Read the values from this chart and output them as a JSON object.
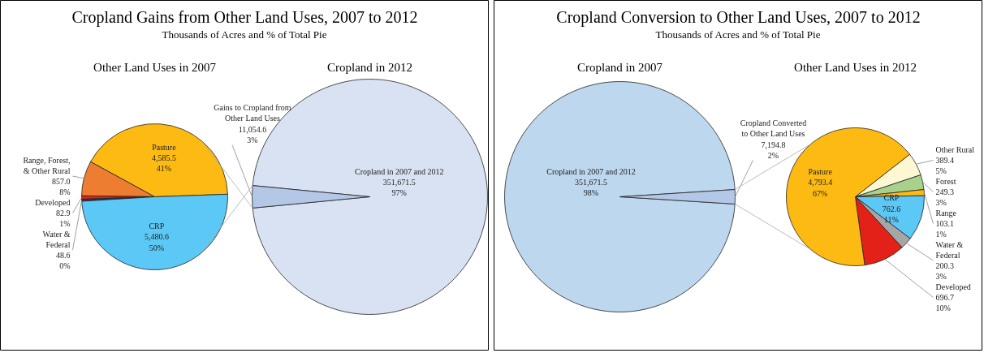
{
  "chart_data": [
    {
      "type": "other",
      "title": "Cropland Gains from Other Land Uses, 2007 to 2012",
      "subtitle": "Thousands of Acres and % of Total Pie"
    },
    {
      "type": "pie",
      "title": "Other Land Uses in 2007",
      "categories": [
        "Pasture",
        "Range, Forest, & Other Rural",
        "Developed",
        "Water & Federal",
        "CRP"
      ],
      "values": [
        4585.5,
        857.0,
        82.9,
        48.6,
        5480.6
      ],
      "colors": [
        "#fdba12",
        "#ed7d31",
        "#e32119",
        "#1f3864",
        "#5bc8f5"
      ],
      "value_labels": [
        "4,585.5\n41%",
        "857.0\n8%",
        "82.9\n1%",
        "48.6\n0%",
        "5,480.6\n50%"
      ]
    },
    {
      "type": "pie",
      "title": "Cropland in 2012",
      "categories": [
        "Cropland in 2007 and 2012",
        "Gains to Cropland from Other Land Uses"
      ],
      "values": [
        351671.5,
        11054.6
      ],
      "colors": [
        "#d9e2f3",
        "#b4c7e7"
      ],
      "value_labels": [
        "351,671.5\n97%",
        "11,054.6\n3%"
      ]
    },
    {
      "type": "other",
      "title": "Cropland Conversion to Other Land Uses, 2007 to 2012",
      "subtitle": "Thousands of Acres and % of Total Pie"
    },
    {
      "type": "pie",
      "title": "Cropland in 2007",
      "categories": [
        "Cropland in 2007 and 2012",
        "Cropland Converted to Other Land Uses"
      ],
      "values": [
        351671.5,
        7194.8
      ],
      "colors": [
        "#bdd7ee",
        "#b4c7e7"
      ],
      "value_labels": [
        "351,671.5\n98%",
        "7,194.8\n2%"
      ]
    },
    {
      "type": "pie",
      "title": "Other Land Uses in 2012",
      "categories": [
        "Other Rural",
        "Forest",
        "Range",
        "CRP",
        "Water & Federal",
        "Developed",
        "Pasture"
      ],
      "values": [
        389.4,
        249.3,
        103.1,
        762.6,
        200.3,
        696.7,
        4793.4
      ],
      "colors": [
        "#fdf8d3",
        "#a9d18e",
        "#fdba12",
        "#5bc8f5",
        "#a6a6a6",
        "#e32119",
        "#fdba12"
      ],
      "value_labels": [
        "389.4\n5%",
        "249.3\n3%",
        "103.1\n1%",
        "762.6\n11%",
        "200.3\n3%",
        "696.7\n10%",
        "4,793.4\n67%"
      ]
    }
  ]
}
